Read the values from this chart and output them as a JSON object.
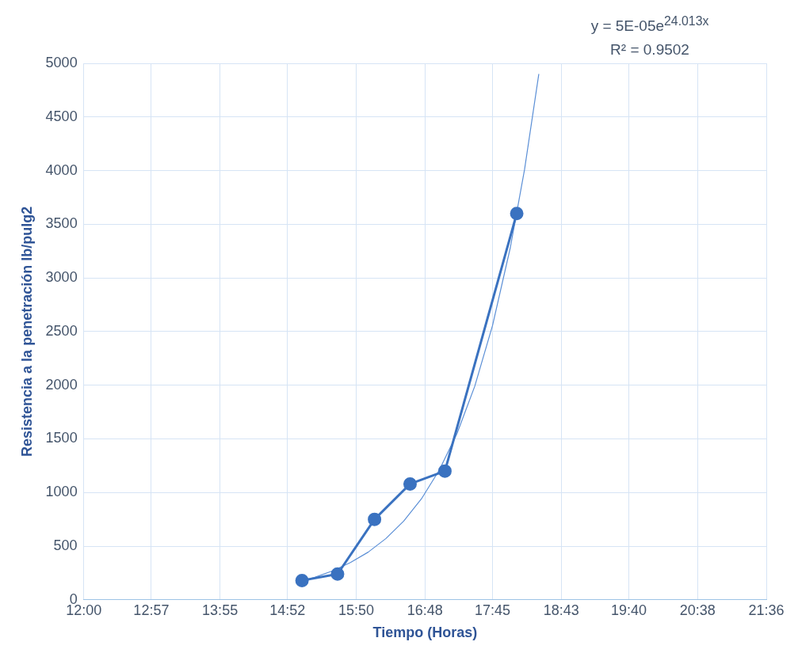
{
  "chart_data": {
    "type": "line",
    "xlabel": "Tiempo (Horas)",
    "ylabel": "Resistencia a la penetración lb/pulg2",
    "annotations": [
      "y = 5E-05e$^{24.013x}$",
      "R² = 0.9502"
    ],
    "series": [
      {
        "x": [
          15.07,
          15.57,
          16.09,
          16.59,
          17.08,
          18.09
        ],
        "values": [
          180,
          240,
          750,
          1080,
          1200,
          3600
        ],
        "color": "#3a72c0"
      },
      {
        "type": "line",
        "marker": "none",
        "x": [
          15.0,
          15.25,
          15.5,
          15.75,
          16.0,
          16.25,
          16.5,
          16.75,
          17.0,
          17.25,
          17.5,
          17.75,
          18.0,
          18.2,
          18.4
        ],
        "values": [
          163,
          210,
          270,
          347,
          444,
          571,
          733,
          941,
          1208,
          1550,
          1991,
          2557,
          3283,
          4010,
          4898
        ],
        "color": "#5b8fd6"
      }
    ],
    "xlim": [
      12,
      21.6
    ],
    "xticks": [
      {
        "value": 12,
        "label": "12:00"
      },
      {
        "value": 12.95,
        "label": "12:57"
      },
      {
        "value": 13.9167,
        "label": "13:55"
      },
      {
        "value": 14.8667,
        "label": "14:52"
      },
      {
        "value": 15.8333,
        "label": "15:50"
      },
      {
        "value": 16.8,
        "label": "16:48"
      },
      {
        "value": 17.75,
        "label": "17:45"
      },
      {
        "value": 18.7167,
        "label": "18:43"
      },
      {
        "value": 19.6667,
        "label": "19:40"
      },
      {
        "value": 20.6333,
        "label": "20:38"
      },
      {
        "value": 21.6,
        "label": "21:36"
      }
    ],
    "ylim": [
      0,
      5000
    ],
    "yticks": [
      0,
      500,
      1000,
      1500,
      2000,
      2500,
      3000,
      3500,
      4000,
      4500,
      5000
    ],
    "grid": true,
    "legend": false,
    "marker": "circle",
    "line_style": "solid"
  }
}
